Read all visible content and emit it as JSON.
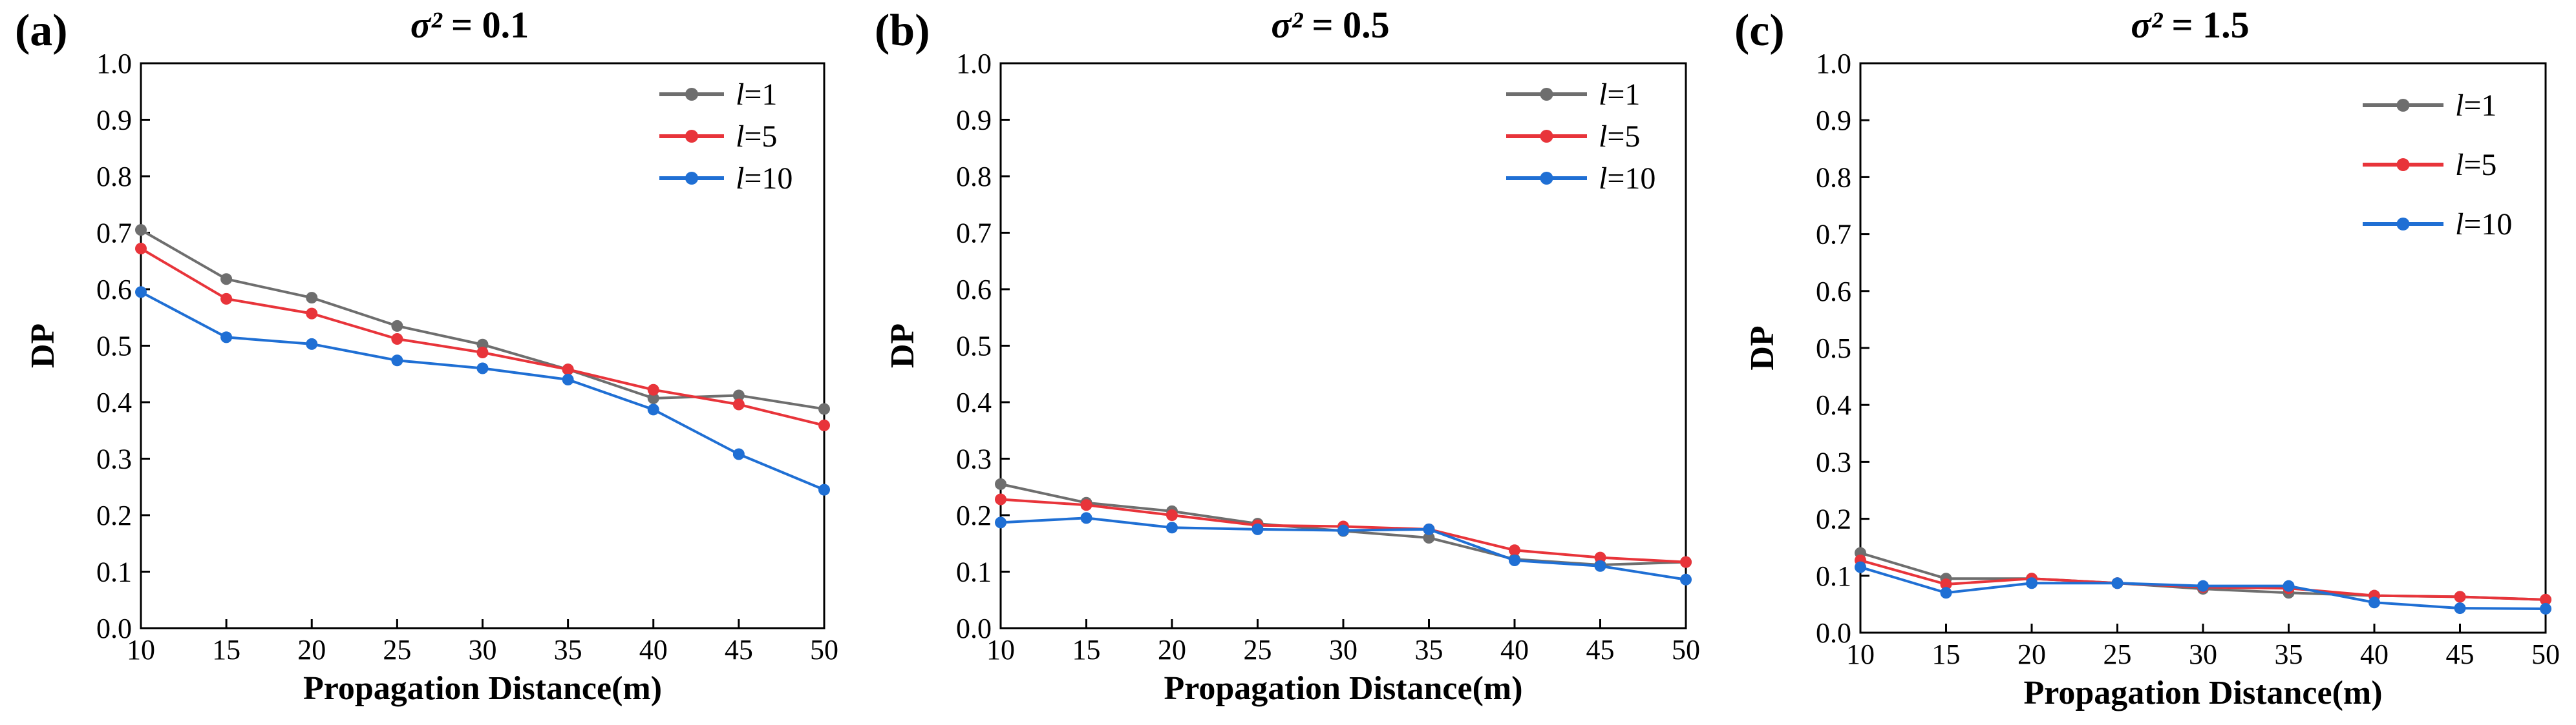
{
  "figure": {
    "label": "DP vs propagation distance for three turbulence strengths"
  },
  "chart_data": [
    {
      "type": "line",
      "panel_label": "(a)",
      "title_symbol": "σ²",
      "title_value": " = 0.1",
      "xlabel": "Propagation Distance(m)",
      "ylabel": "DP",
      "x": [
        10,
        15,
        20,
        25,
        30,
        35,
        40,
        45,
        50
      ],
      "xlim": [
        10,
        50
      ],
      "ylim": [
        0.0,
        1.0
      ],
      "xticks": [
        "10",
        "15",
        "20",
        "25",
        "30",
        "35",
        "40",
        "45",
        "50"
      ],
      "yticks": [
        "0.0",
        "0.1",
        "0.2",
        "0.3",
        "0.4",
        "0.5",
        "0.6",
        "0.7",
        "0.8",
        "0.9",
        "1.0"
      ],
      "legend_position": "top-right",
      "series": [
        {
          "name": "l=1",
          "legend_var": "l",
          "legend_eq": "=1",
          "color": "#6e6e6e",
          "values": [
            0.705,
            0.618,
            0.585,
            0.535,
            0.502,
            0.458,
            0.407,
            0.412,
            0.388
          ]
        },
        {
          "name": "l=5",
          "legend_var": "l",
          "legend_eq": "=5",
          "color": "#e8343a",
          "values": [
            0.672,
            0.583,
            0.557,
            0.512,
            0.488,
            0.458,
            0.422,
            0.396,
            0.359
          ]
        },
        {
          "name": "l=10",
          "legend_var": "l",
          "legend_eq": "=10",
          "color": "#1f6fd4",
          "values": [
            0.595,
            0.515,
            0.503,
            0.474,
            0.46,
            0.44,
            0.387,
            0.308,
            0.245
          ]
        }
      ]
    },
    {
      "type": "line",
      "panel_label": "(b)",
      "title_symbol": "σ²",
      "title_value": " = 0.5",
      "xlabel": "Propagation Distance(m)",
      "ylabel": "DP",
      "x": [
        10,
        15,
        20,
        25,
        30,
        35,
        40,
        45,
        50
      ],
      "xlim": [
        10,
        50
      ],
      "ylim": [
        0.0,
        1.0
      ],
      "xticks": [
        "10",
        "15",
        "20",
        "25",
        "30",
        "35",
        "40",
        "45",
        "50"
      ],
      "yticks": [
        "0.0",
        "0.1",
        "0.2",
        "0.3",
        "0.4",
        "0.5",
        "0.6",
        "0.7",
        "0.8",
        "0.9",
        "1.0"
      ],
      "legend_position": "top-right",
      "series": [
        {
          "name": "l=1",
          "legend_var": "l",
          "legend_eq": "=1",
          "color": "#6e6e6e",
          "values": [
            0.255,
            0.222,
            0.207,
            0.185,
            0.172,
            0.16,
            0.122,
            0.112,
            0.117
          ]
        },
        {
          "name": "l=5",
          "legend_var": "l",
          "legend_eq": "=5",
          "color": "#e8343a",
          "values": [
            0.228,
            0.218,
            0.2,
            0.182,
            0.18,
            0.175,
            0.138,
            0.125,
            0.117
          ]
        },
        {
          "name": "l=10",
          "legend_var": "l",
          "legend_eq": "=10",
          "color": "#1f6fd4",
          "values": [
            0.187,
            0.195,
            0.178,
            0.175,
            0.173,
            0.175,
            0.12,
            0.11,
            0.086
          ]
        }
      ]
    },
    {
      "type": "line",
      "panel_label": "(c)",
      "title_symbol": "σ²",
      "title_value": " = 1.5",
      "xlabel": "Propagation Distance(m)",
      "ylabel": "DP",
      "x": [
        10,
        15,
        20,
        25,
        30,
        35,
        40,
        45,
        50
      ],
      "xlim": [
        10,
        50
      ],
      "ylim": [
        0.0,
        1.0
      ],
      "xticks": [
        "10",
        "15",
        "20",
        "25",
        "30",
        "35",
        "40",
        "45",
        "50"
      ],
      "yticks": [
        "0.0",
        "0.1",
        "0.2",
        "0.3",
        "0.4",
        "0.5",
        "0.6",
        "0.7",
        "0.8",
        "0.9",
        "1.0"
      ],
      "legend_position": "top-right",
      "series": [
        {
          "name": "l=1",
          "legend_var": "l",
          "legend_eq": "=1",
          "color": "#6e6e6e",
          "values": [
            0.14,
            0.095,
            0.095,
            0.087,
            0.077,
            0.07,
            0.065,
            0.063,
            0.058
          ]
        },
        {
          "name": "l=5",
          "legend_var": "l",
          "legend_eq": "=5",
          "color": "#e8343a",
          "values": [
            0.127,
            0.085,
            0.095,
            0.087,
            0.08,
            0.078,
            0.065,
            0.063,
            0.058
          ]
        },
        {
          "name": "l=10",
          "legend_var": "l",
          "legend_eq": "=10",
          "color": "#1f6fd4",
          "values": [
            0.115,
            0.07,
            0.087,
            0.087,
            0.082,
            0.082,
            0.053,
            0.043,
            0.042
          ]
        }
      ]
    }
  ]
}
